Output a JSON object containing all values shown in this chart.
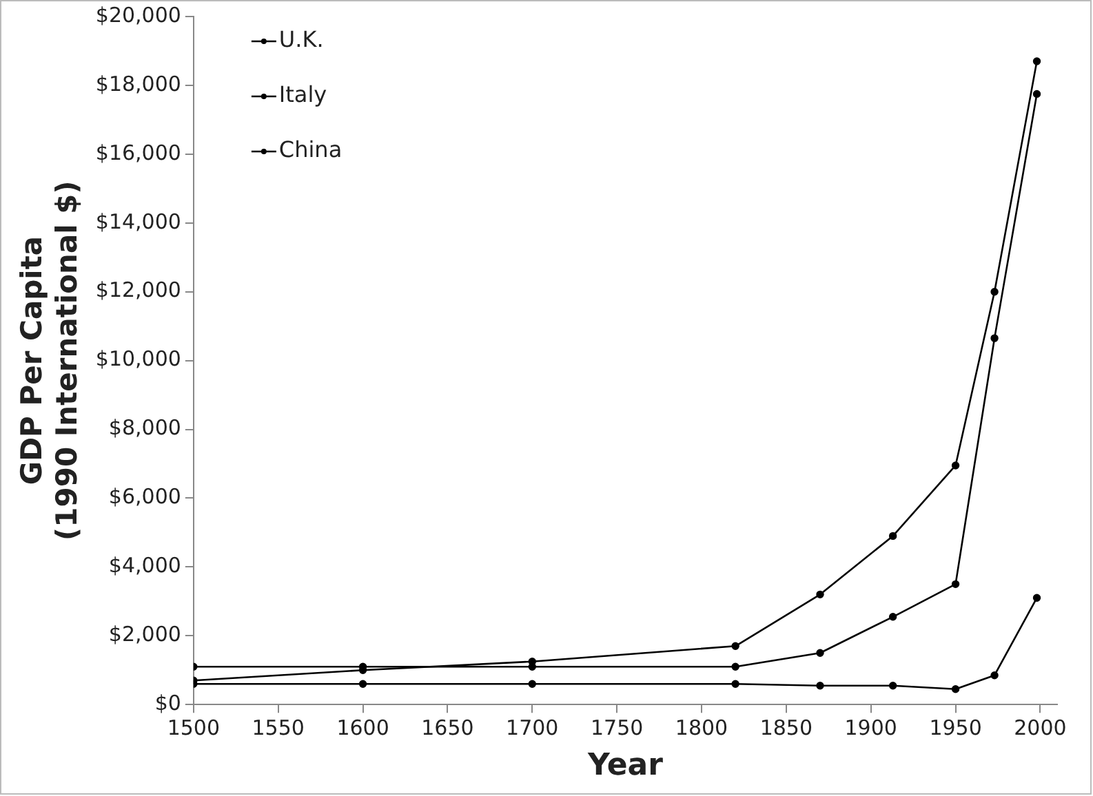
{
  "chart_data": {
    "type": "line",
    "xlabel": "Year",
    "ylabel": "GDP Per Capita\n(1990 International $)",
    "x": [
      1500,
      1600,
      1700,
      1820,
      1870,
      1913,
      1950,
      1973,
      1998
    ],
    "series": [
      {
        "name": "U.K.",
        "color": "#000000",
        "values": [
          700,
          1000,
          1250,
          1700,
          3200,
          4900,
          6950,
          12000,
          18700
        ]
      },
      {
        "name": "Italy",
        "color": "#000000",
        "values": [
          1100,
          1100,
          1100,
          1100,
          1500,
          2550,
          3500,
          10650,
          17750
        ]
      },
      {
        "name": "China",
        "color": "#000000",
        "values": [
          600,
          600,
          600,
          600,
          550,
          550,
          450,
          850,
          3100
        ]
      }
    ],
    "xlim": [
      1500,
      2010
    ],
    "xticks": [
      1500,
      1550,
      1600,
      1650,
      1700,
      1750,
      1800,
      1850,
      1900,
      1950,
      2000
    ],
    "ylim": [
      0,
      20000
    ],
    "yticks": [
      {
        "value": 0,
        "label": "$0"
      },
      {
        "value": 2000,
        "label": "$2,000"
      },
      {
        "value": 4000,
        "label": "$4,000"
      },
      {
        "value": 6000,
        "label": "$6,000"
      },
      {
        "value": 8000,
        "label": "$8,000"
      },
      {
        "value": 10000,
        "label": "$10,000"
      },
      {
        "value": 12000,
        "label": "$12,000"
      },
      {
        "value": 14000,
        "label": "$14,000"
      },
      {
        "value": 16000,
        "label": "$16,000"
      },
      {
        "value": 18000,
        "label": "$18,000"
      },
      {
        "value": 20000,
        "label": "$20,000"
      }
    ],
    "legend": "top left",
    "marker": "circle",
    "line_style": "solid",
    "grid": false
  }
}
